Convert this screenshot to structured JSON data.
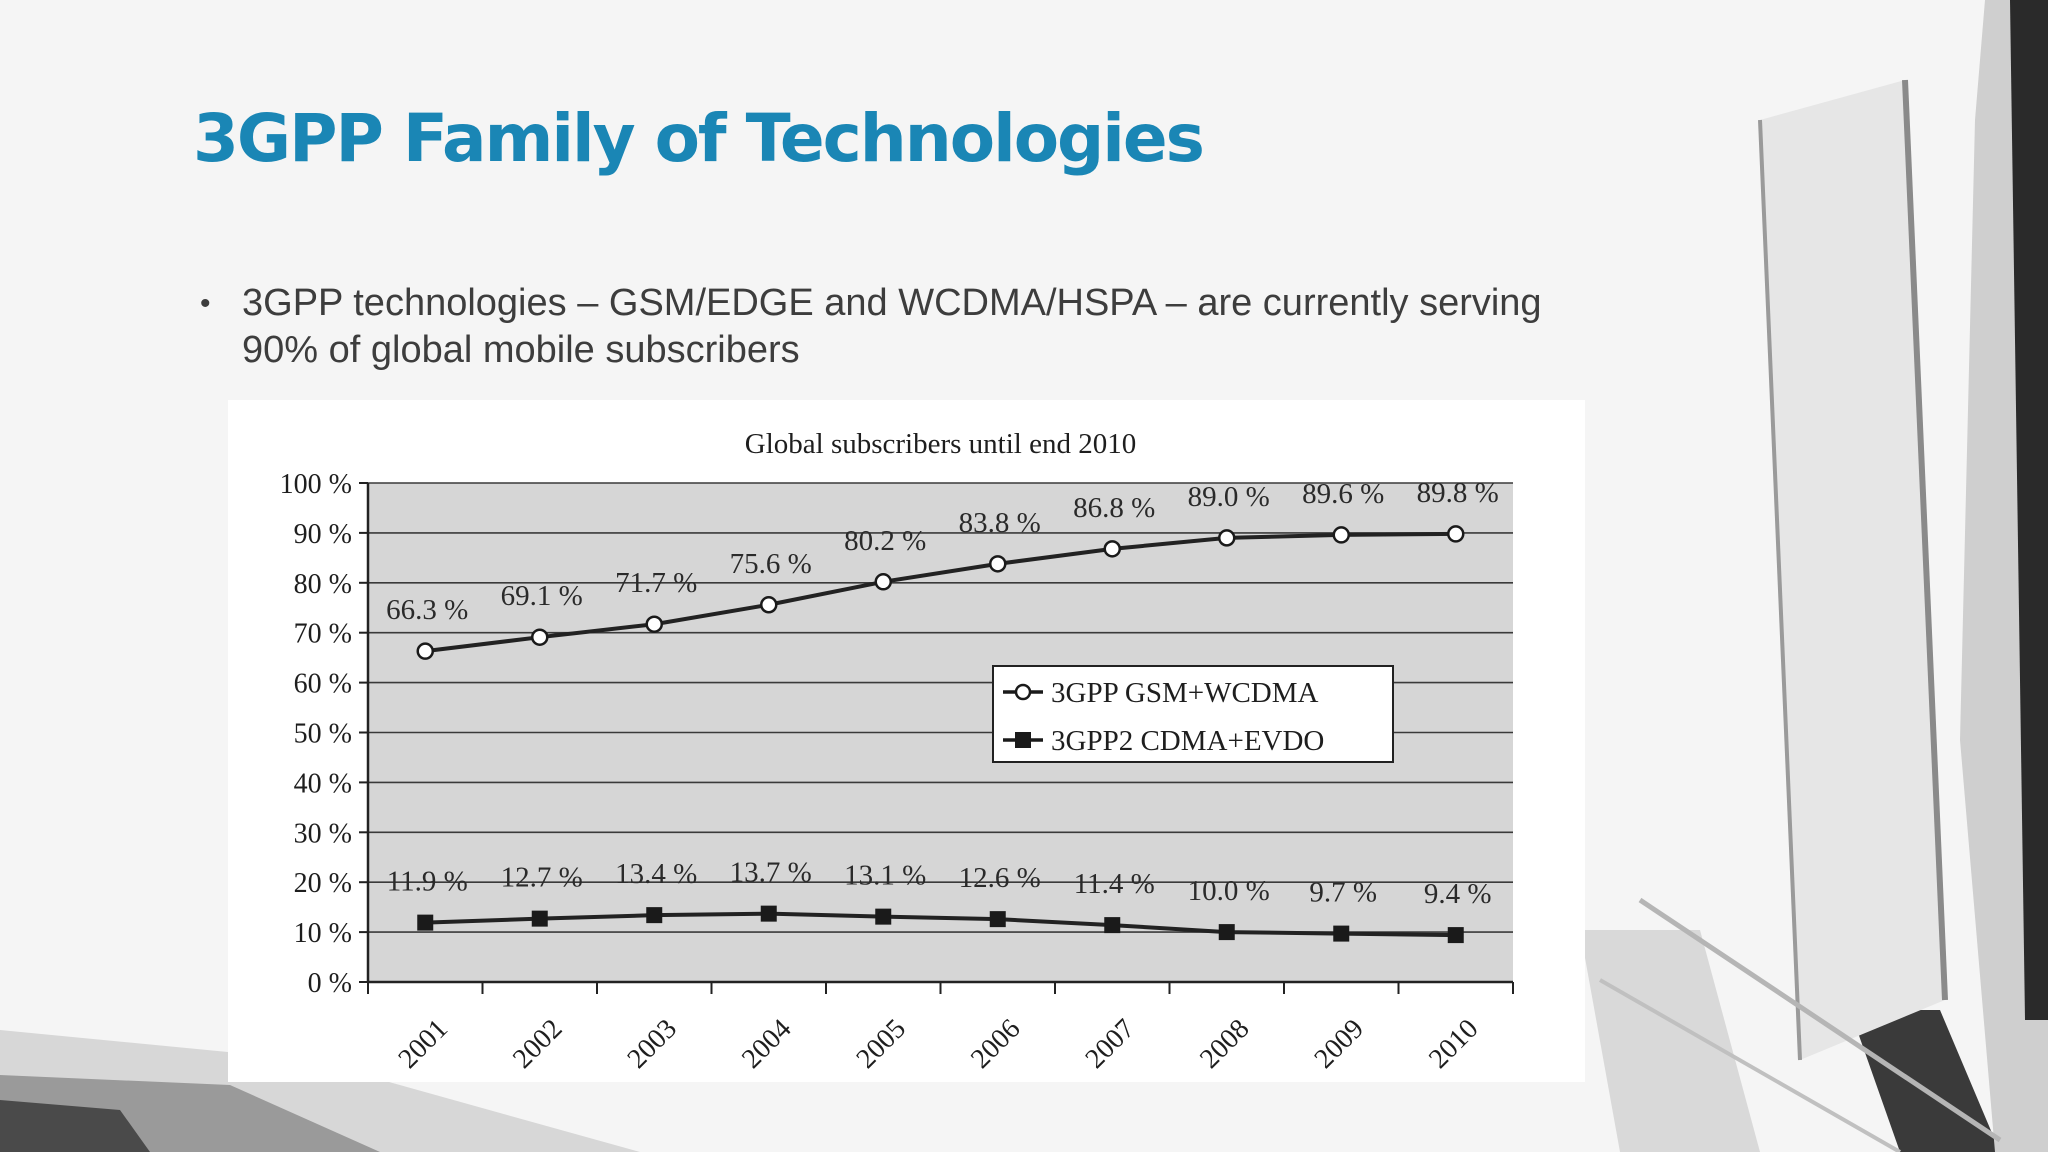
{
  "slide": {
    "title": "3GPP Family of Technologies",
    "bullet": {
      "marker": "•",
      "lines": [
        "3GPP technologies – GSM/EDGE and WCDMA/HSPA – are currently serving",
        "90% of global mobile subscribers"
      ]
    }
  },
  "colors": {
    "title": "#1a86b5",
    "text": "#3d3d3d",
    "plot_bg": "#d6d6d6",
    "series": "#222222"
  },
  "chart_data": {
    "type": "line",
    "title": "Global subscribers until end 2010",
    "xlabel": "",
    "ylabel": "",
    "categories": [
      "2001",
      "2002",
      "2003",
      "2004",
      "2005",
      "2006",
      "2007",
      "2008",
      "2009",
      "2010"
    ],
    "ylim": [
      0,
      100
    ],
    "y_ticks": [
      "0 %",
      "10 %",
      "20 %",
      "30 %",
      "40 %",
      "50 %",
      "60 %",
      "70 %",
      "80 %",
      "90 %",
      "100 %"
    ],
    "grid": "horizontal",
    "legend_position": "center-right",
    "series": [
      {
        "name": "3GPP GSM+WCDMA",
        "marker": "open-circle",
        "values": [
          66.3,
          69.1,
          71.7,
          75.6,
          80.2,
          83.8,
          86.8,
          89.0,
          89.6,
          89.8
        ],
        "labels": [
          "66.3 %",
          "69.1 %",
          "71.7 %",
          "75.6 %",
          "80.2 %",
          "83.8 %",
          "86.8 %",
          "89.0 %",
          "89.6 %",
          "89.8 %"
        ]
      },
      {
        "name": "3GPP2 CDMA+EVDO",
        "marker": "filled-square",
        "values": [
          11.9,
          12.7,
          13.4,
          13.7,
          13.1,
          12.6,
          11.4,
          10.0,
          9.7,
          9.4
        ],
        "labels": [
          "11.9 %",
          "12.7 %",
          "13.4 %",
          "13.7 %",
          "13.1 %",
          "12.6 %",
          "11.4 %",
          "10.0 %",
          "9.7 %",
          "9.4 %"
        ]
      }
    ]
  }
}
